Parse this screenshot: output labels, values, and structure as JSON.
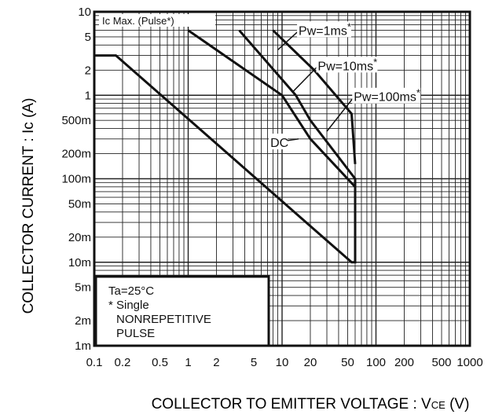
{
  "chart_data": {
    "type": "line",
    "xscale": "log",
    "yscale": "log",
    "xlim": [
      0.1,
      1000
    ],
    "ylim": [
      0.001,
      10
    ],
    "xlabel": "COLLECTOR TO EMITTER VOLTAGE : VCE (V)",
    "xlabel_main": "COLLECTOR TO EMITTER VOLTAGE : V",
    "xlabel_sub": "CE",
    "xlabel_unit": " (V)",
    "ylabel": "COLLECTOR CURRENT : Ic (A)",
    "grid": true,
    "xticks": [
      {
        "v": 0.1,
        "label": "0.1"
      },
      {
        "v": 0.2,
        "label": "0.2"
      },
      {
        "v": 0.5,
        "label": "0.5"
      },
      {
        "v": 1,
        "label": "1"
      },
      {
        "v": 2,
        "label": "2"
      },
      {
        "v": 5,
        "label": "5"
      },
      {
        "v": 10,
        "label": "10"
      },
      {
        "v": 20,
        "label": "20"
      },
      {
        "v": 50,
        "label": "50"
      },
      {
        "v": 100,
        "label": "100"
      },
      {
        "v": 200,
        "label": "200"
      },
      {
        "v": 500,
        "label": "500"
      },
      {
        "v": 1000,
        "label": "1000"
      }
    ],
    "yticks": [
      {
        "v": 10,
        "label": "10"
      },
      {
        "v": 5,
        "label": "5"
      },
      {
        "v": 2,
        "label": "2"
      },
      {
        "v": 1,
        "label": "1"
      },
      {
        "v": 0.5,
        "label": "500m"
      },
      {
        "v": 0.2,
        "label": "200m"
      },
      {
        "v": 0.1,
        "label": "100m"
      },
      {
        "v": 0.05,
        "label": "50m"
      },
      {
        "v": 0.02,
        "label": "20m"
      },
      {
        "v": 0.01,
        "label": "10m"
      },
      {
        "v": 0.005,
        "label": "5m"
      },
      {
        "v": 0.002,
        "label": "2m"
      },
      {
        "v": 0.001,
        "label": "1m"
      }
    ],
    "series": [
      {
        "label": "Pw=1ms*",
        "points": [
          [
            8,
            6
          ],
          [
            22,
            2
          ],
          [
            55,
            0.6
          ],
          [
            60,
            0.15
          ]
        ]
      },
      {
        "label": "Pw=10ms*",
        "points": [
          [
            3.5,
            6
          ],
          [
            14,
            1
          ],
          [
            20,
            0.5
          ],
          [
            60,
            0.1
          ],
          [
            60,
            0.07
          ]
        ]
      },
      {
        "label": "Pw=100ms*",
        "points": [
          [
            1,
            6
          ],
          [
            10,
            1
          ],
          [
            20,
            0.3
          ],
          [
            60,
            0.08
          ],
          [
            60,
            0.07
          ]
        ]
      },
      {
        "label": "DC",
        "points": [
          [
            0.1,
            3
          ],
          [
            0.17,
            3
          ],
          [
            55,
            0.01
          ],
          [
            60,
            0.01
          ],
          [
            60,
            0.07
          ]
        ]
      }
    ],
    "ic_max": {
      "label": "Ic Max. (Pulse*)",
      "value": 6
    },
    "annotations": [
      {
        "text": "Pw=1ms",
        "sup": "*",
        "x": 15,
        "y": 5.3,
        "arrow_to": [
          9,
          3.5
        ]
      },
      {
        "text": "Pw=10ms",
        "sup": "*",
        "x": 24,
        "y": 2.0,
        "arrow_to": [
          13,
          1.1
        ]
      },
      {
        "text": "Pw=100ms",
        "sup": "*",
        "x": 58,
        "y": 0.85,
        "arrow_to": [
          30,
          0.37
        ]
      },
      {
        "text": "DC",
        "x": 7.5,
        "y": 0.24,
        "arrow_to": [
          15,
          0.3
        ]
      }
    ],
    "legend": [
      "Ta=25°C",
      "* Single",
      "NONREPETITIVE",
      "PULSE"
    ]
  },
  "colors": {
    "line": "#111111",
    "grid": "#222222",
    "background": "#ffffff"
  }
}
